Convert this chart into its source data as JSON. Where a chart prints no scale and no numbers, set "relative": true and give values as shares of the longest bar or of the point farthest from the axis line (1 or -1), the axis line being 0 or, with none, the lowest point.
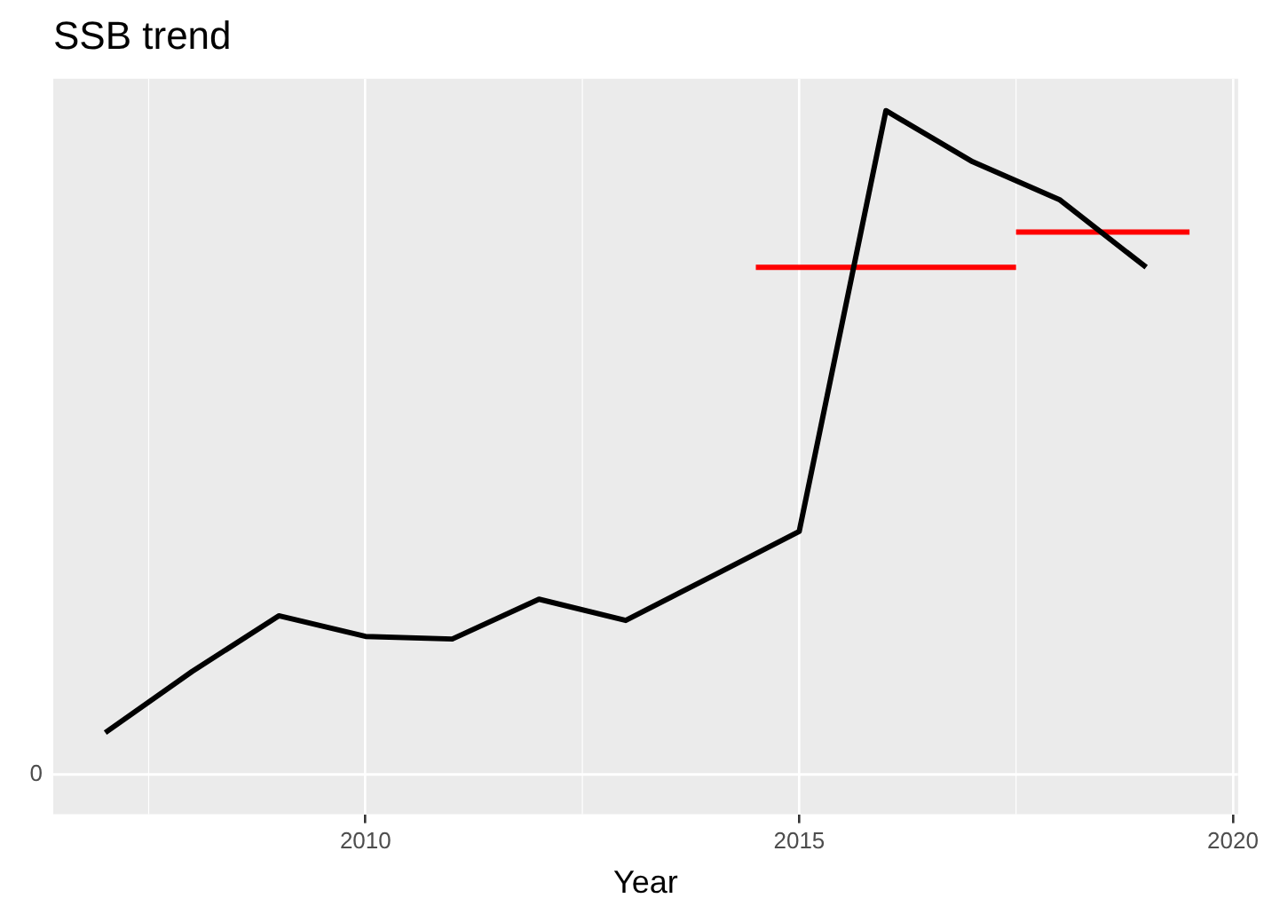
{
  "chart_data": {
    "type": "line",
    "title": "SSB trend",
    "xlabel": "Year",
    "relative": true,
    "xlim": [
      2006.4,
      2020.06
    ],
    "xticks": [
      2010,
      2015,
      2020
    ],
    "ref_lines": [
      {
        "axis": "y",
        "value": 0,
        "label": "0",
        "color": "#ffffff"
      }
    ],
    "grid": "x",
    "legend": false,
    "marker": "none",
    "line_style": "solid",
    "series": [
      {
        "color": "#000000",
        "x": [
          2007,
          2008,
          2009,
          2010,
          2011,
          2012,
          2013,
          2014,
          2015,
          2016,
          2017,
          2018,
          2019
        ],
        "values": [
          0.063,
          0.155,
          0.239,
          0.208,
          0.204,
          0.264,
          0.232,
          0.299,
          0.366,
          1,
          0.923,
          0.866,
          0.764
        ]
      },
      {
        "color": "#ff0000",
        "x": [
          2014.5,
          2017.5
        ],
        "values": [
          0.764,
          0.764
        ]
      },
      {
        "color": "#ff0000",
        "x": [
          2017.5,
          2019.5
        ],
        "values": [
          0.817,
          0.817
        ]
      }
    ]
  }
}
